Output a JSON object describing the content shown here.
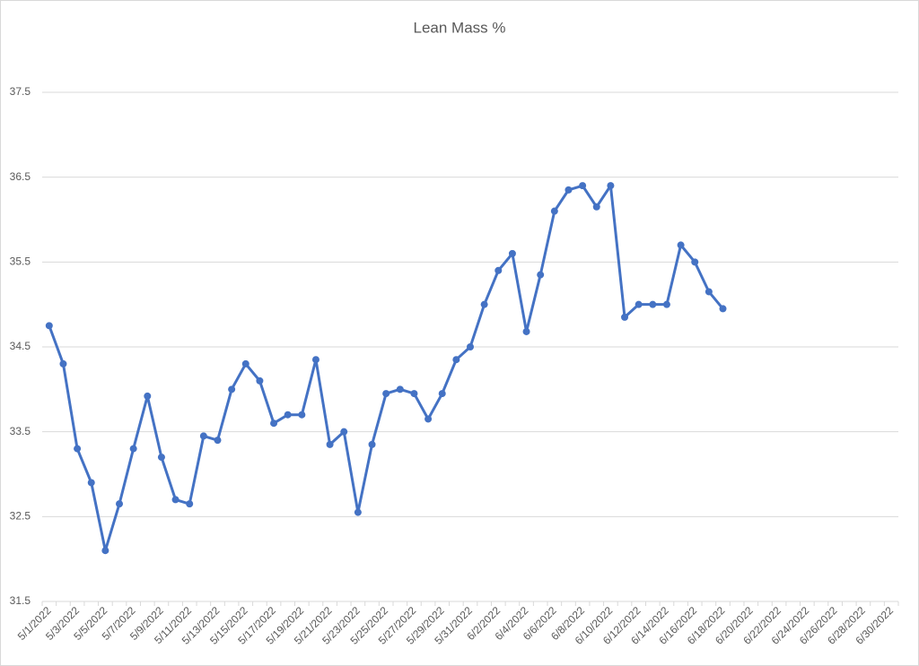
{
  "chart_data": {
    "type": "line",
    "title": "Lean Mass %",
    "categories": [
      "5/1/2022",
      null,
      "5/3/2022",
      null,
      "5/5/2022",
      null,
      "5/7/2022",
      null,
      "5/9/2022",
      null,
      "5/11/2022",
      null,
      "5/13/2022",
      null,
      "5/15/2022",
      null,
      "5/17/2022",
      null,
      "5/19/2022",
      null,
      "5/21/2022",
      null,
      "5/23/2022",
      null,
      "5/25/2022",
      null,
      "5/27/2022",
      null,
      "5/29/2022",
      null,
      "5/31/2022",
      null,
      "6/2/2022",
      null,
      "6/4/2022",
      null,
      "6/6/2022",
      null,
      "6/8/2022",
      null,
      "6/10/2022",
      null,
      "6/12/2022",
      null,
      "6/14/2022",
      null,
      "6/16/2022",
      null,
      "6/18/2022",
      null,
      "6/20/2022",
      null,
      "6/22/2022",
      null,
      "6/24/2022",
      null,
      "6/26/2022",
      null,
      "6/28/2022",
      null,
      "6/30/2022"
    ],
    "values": [
      34.75,
      34.3,
      33.3,
      32.9,
      32.1,
      32.65,
      33.3,
      33.92,
      33.2,
      32.7,
      32.65,
      33.45,
      33.4,
      34.0,
      34.3,
      34.1,
      33.6,
      33.7,
      33.7,
      34.35,
      33.35,
      33.5,
      32.55,
      33.35,
      33.95,
      34.0,
      33.95,
      33.65,
      33.95,
      34.35,
      34.5,
      35.0,
      35.4,
      35.6,
      34.68,
      35.35,
      36.1,
      36.35,
      36.4,
      36.15,
      36.4,
      34.85,
      35.0,
      35.0,
      35.0,
      35.7,
      35.5,
      35.15,
      34.95,
      null,
      null,
      null,
      null,
      null,
      null,
      null,
      null,
      null,
      null,
      null,
      null
    ],
    "color": "#4472c4",
    "ylim": [
      31.5,
      37.5
    ],
    "yticks": [
      31.5,
      32.5,
      33.5,
      34.5,
      35.5,
      36.5,
      37.5
    ],
    "grid": true
  }
}
